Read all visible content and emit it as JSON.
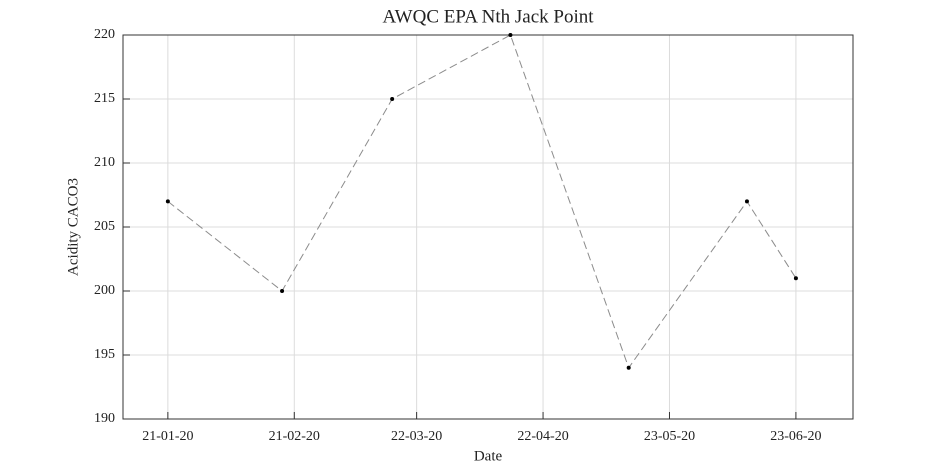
{
  "chart_data": {
    "type": "line",
    "title": "AWQC EPA Nth Jack Point",
    "xlabel": "Date",
    "ylabel": "Acidity CACO3",
    "x": [
      "21-01-20",
      "18-02-20",
      "16-03-20",
      "14-04-20",
      "13-05-20",
      "11-06-20",
      "23-06-20"
    ],
    "values": [
      207,
      200,
      215,
      220,
      194,
      207,
      201
    ],
    "color": "#8c8c8c",
    "marker_color": "#000000",
    "xlim": [
      "10-01-20",
      "07-07-20"
    ],
    "xticks": [
      "21-01-20",
      "21-02-20",
      "22-03-20",
      "22-04-20",
      "23-05-20",
      "23-06-20"
    ],
    "ylim": [
      190,
      220
    ],
    "yticks": [
      190,
      195,
      200,
      205,
      210,
      215,
      220
    ],
    "grid": true
  }
}
